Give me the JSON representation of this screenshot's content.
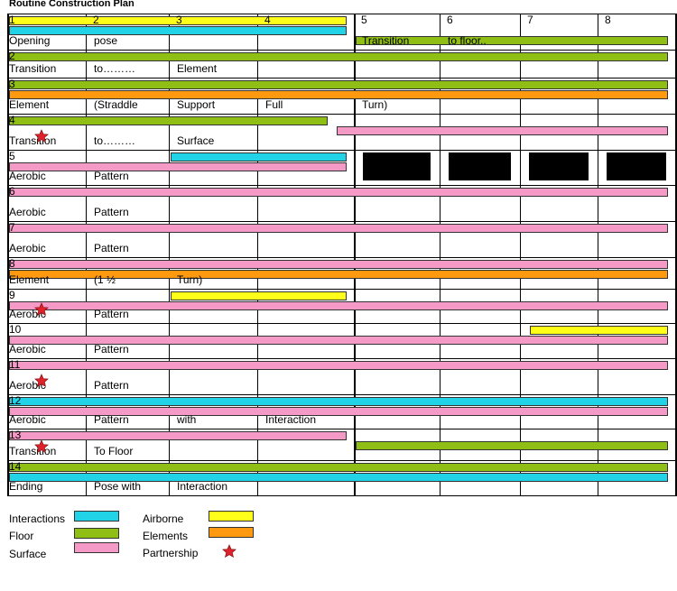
{
  "title": "Routine Construction Plan",
  "colors": {
    "interactions": "#22d3e8",
    "floor": "#8fbe14",
    "surface": "#f59ac7",
    "airborne": "#ffff1a",
    "elements": "#ff9a10",
    "partnership": "#e0202a"
  },
  "columns": [
    "1",
    "2",
    "3",
    "4",
    "5",
    "6",
    "7",
    "8"
  ],
  "rows": [
    {
      "num": "1",
      "texts": [
        "Opening",
        "pose",
        "",
        "",
        "Transition",
        "to floor..",
        "",
        ""
      ]
    },
    {
      "num": "2",
      "texts": [
        "Transition",
        "to………",
        "Element",
        "",
        "",
        "",
        "",
        ""
      ]
    },
    {
      "num": "3",
      "texts": [
        "Element",
        "(Straddle",
        "Support",
        "Full",
        "Turn)",
        "",
        "",
        ""
      ]
    },
    {
      "num": "4",
      "texts": [
        "Transition",
        "to………",
        "Surface",
        "",
        "",
        "",
        "",
        ""
      ],
      "star": true
    },
    {
      "num": "5",
      "texts": [
        "Aerobic",
        "Pattern",
        "",
        "",
        "",
        "",
        "",
        ""
      ]
    },
    {
      "num": "6",
      "texts": [
        "Aerobic",
        "Pattern",
        "",
        "",
        "",
        "",
        "",
        ""
      ]
    },
    {
      "num": "7",
      "texts": [
        "Aerobic",
        "Pattern",
        "",
        "",
        "",
        "",
        "",
        ""
      ]
    },
    {
      "num": "8",
      "texts": [
        "Element",
        "(1 ½",
        "Turn)",
        "",
        "",
        "",
        "",
        ""
      ]
    },
    {
      "num": "9",
      "texts": [
        "Aerobic",
        "Pattern",
        "",
        "",
        "",
        "",
        "",
        ""
      ],
      "star": true
    },
    {
      "num": "10",
      "texts": [
        "Aerobic",
        "Pattern",
        "",
        "",
        "",
        "",
        "",
        ""
      ]
    },
    {
      "num": "11",
      "texts": [
        "Aerobic",
        "Pattern",
        "",
        "",
        "",
        "",
        "",
        ""
      ],
      "star": true
    },
    {
      "num": "12",
      "texts": [
        "Aerobic",
        "Pattern",
        "with",
        "Interaction",
        "",
        "",
        "",
        ""
      ]
    },
    {
      "num": "13",
      "texts": [
        "Transition",
        "To Floor",
        "",
        "",
        "",
        "",
        "",
        ""
      ],
      "star": true
    },
    {
      "num": "14",
      "texts": [
        "Ending",
        "Pose with",
        "Interaction",
        "",
        "",
        "",
        "",
        ""
      ]
    }
  ],
  "bars": [
    {
      "row": 0,
      "type": "airborne",
      "from": 0,
      "to": 4
    },
    {
      "row": 0,
      "type": "interactions",
      "from": 0,
      "to": 4
    },
    {
      "row": 0,
      "type": "floor",
      "from": 4,
      "to": 8
    },
    {
      "row": 1,
      "type": "floor",
      "from": 0,
      "to": 8
    },
    {
      "row": 2,
      "type": "floor",
      "from": 0,
      "to": 8
    },
    {
      "row": 2,
      "type": "elements",
      "from": 0,
      "to": 8
    },
    {
      "row": 3,
      "type": "floor",
      "from": 0,
      "to": 3.8
    },
    {
      "row": 3,
      "type": "surface",
      "from": 3.8,
      "to": 8
    },
    {
      "row": 4,
      "type": "interactions",
      "from": 2,
      "to": 4
    },
    {
      "row": 4,
      "type": "surface",
      "from": 0,
      "to": 4
    },
    {
      "row": 5,
      "type": "surface",
      "from": 0,
      "to": 8
    },
    {
      "row": 6,
      "type": "surface",
      "from": 0,
      "to": 8
    },
    {
      "row": 7,
      "type": "surface",
      "from": 0,
      "to": 8
    },
    {
      "row": 7,
      "type": "elements",
      "from": 0,
      "to": 8
    },
    {
      "row": 8,
      "type": "airborne",
      "from": 2,
      "to": 4
    },
    {
      "row": 8,
      "type": "surface",
      "from": 0,
      "to": 8
    },
    {
      "row": 9,
      "type": "airborne",
      "from": 6.1,
      "to": 8
    },
    {
      "row": 9,
      "type": "surface",
      "from": 0,
      "to": 8
    },
    {
      "row": 10,
      "type": "surface",
      "from": 0,
      "to": 8
    },
    {
      "row": 11,
      "type": "interactions",
      "from": 0,
      "to": 8
    },
    {
      "row": 11,
      "type": "surface",
      "from": 0,
      "to": 8
    },
    {
      "row": 12,
      "type": "surface",
      "from": 0,
      "to": 4
    },
    {
      "row": 12,
      "type": "floor",
      "from": 4,
      "to": 8
    },
    {
      "row": 13,
      "type": "floor",
      "from": 0,
      "to": 8
    },
    {
      "row": 13,
      "type": "interactions",
      "from": 0,
      "to": 8
    }
  ],
  "black_blocks": [
    {
      "row": 4,
      "col": 4
    },
    {
      "row": 4,
      "col": 5
    },
    {
      "row": 4,
      "col": 6
    },
    {
      "row": 4,
      "col": 7
    }
  ],
  "legend": [
    {
      "label": "Interactions",
      "type": "interactions"
    },
    {
      "label": "Floor",
      "type": "floor"
    },
    {
      "label": "Surface",
      "type": "surface"
    },
    {
      "label": "Airborne",
      "type": "airborne"
    },
    {
      "label": "Elements",
      "type": "elements"
    },
    {
      "label": "Partnership",
      "type": "partnership",
      "star": true
    }
  ]
}
